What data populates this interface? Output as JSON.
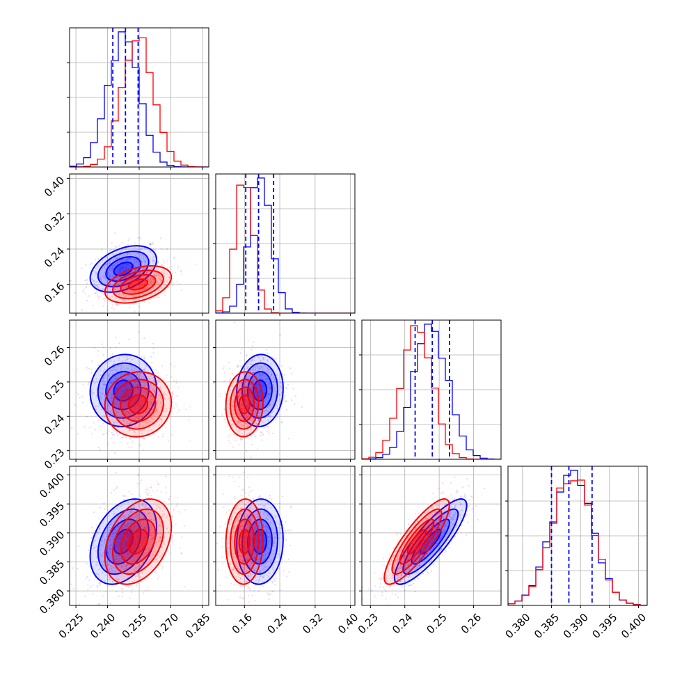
{
  "chart_data": {
    "type": "corner",
    "grid": true,
    "colors": {
      "series_a": "#0000ff",
      "series_b": "#ff0000",
      "axes": "#000000",
      "grid": "#b0b0b0"
    },
    "series": [
      {
        "color": "#0000ff",
        "means": [
          0.2475,
          0.195,
          0.2475,
          0.3885
        ],
        "sigmas": [
          0.0075,
          0.025,
          0.005,
          0.0035
        ],
        "quantiles_16_50_84": [
          [
            0.2425,
            0.2485,
            0.2545
          ],
          [
            0.163,
            0.192,
            0.226
          ],
          [
            0.243,
            0.248,
            0.253
          ],
          [
            0.385,
            0.388,
            0.392
          ]
        ]
      },
      {
        "color": "#ff0000",
        "means": [
          0.2545,
          0.16,
          0.2435,
          0.3885
        ],
        "sigmas": [
          0.0075,
          0.02,
          0.0045,
          0.0035
        ]
      }
    ],
    "correlations": {
      "0-1": 0.4,
      "0-2": 0.05,
      "0-3": 0.35,
      "1-2": 0.05,
      "1-3": 0.05,
      "2-3": 0.85
    },
    "ranges": [
      [
        0.222,
        0.288
      ],
      [
        0.095,
        0.41
      ],
      [
        0.2275,
        0.268
      ],
      [
        0.3775,
        0.4015
      ]
    ],
    "x_ticks": [
      [
        "0.225",
        "0.240",
        "0.255",
        "0.270",
        "0.285"
      ],
      [
        "0.16",
        "0.24",
        "0.32",
        "0.40"
      ],
      [
        "0.23",
        "0.24",
        "0.25",
        "0.26"
      ],
      [
        "0.380",
        "0.385",
        "0.390",
        "0.395",
        "0.400"
      ]
    ],
    "y_ticks": [
      null,
      [
        "0.16",
        "0.24",
        "0.32",
        "0.40"
      ],
      [
        "0.23",
        "0.24",
        "0.25",
        "0.26"
      ],
      [
        "0.380",
        "0.385",
        "0.390",
        "0.395",
        "0.400"
      ]
    ]
  }
}
